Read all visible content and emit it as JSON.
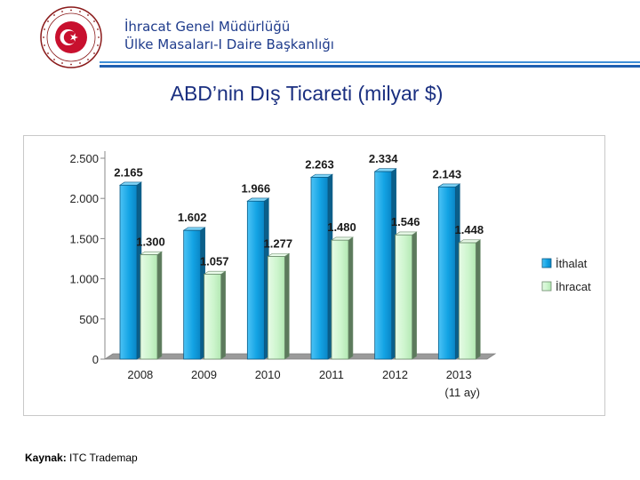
{
  "header": {
    "org_line1": "İhracat Genel Müdürlüğü",
    "org_line2": "Ülke Masaları-I Daire Başkanlığı",
    "seal_text_top": "TÜRKİYE CUMHURİYETİ",
    "seal_text_bottom": "EKONOMİ BAKANLIĞI"
  },
  "title": "ABD’nin Dış Ticareti (milyar $)",
  "source": {
    "label": "Kaynak:",
    "value": "ITC Trademap"
  },
  "colors": {
    "ithalat": "#1aa7e6",
    "ihracat": "#ccf5cc",
    "title": "#1a2f80",
    "org": "#1f3c8c"
  },
  "chart_data": {
    "type": "bar",
    "categories": [
      "2008",
      "2009",
      "2010",
      "2011",
      "2012",
      "2013"
    ],
    "category_sublabels": [
      "",
      "",
      "",
      "",
      "",
      "(11 ay)"
    ],
    "series": [
      {
        "name": "İthalat",
        "values": [
          2165,
          1602,
          1966,
          2263,
          2334,
          2143
        ],
        "labels": [
          "2.165",
          "1.602",
          "1.966",
          "2.263",
          "2.334",
          "2.143"
        ]
      },
      {
        "name": "İhracat",
        "values": [
          1300,
          1057,
          1277,
          1480,
          1546,
          1448
        ],
        "labels": [
          "1.300",
          "1.057",
          "1.277",
          "1.480",
          "1.546",
          "1.448"
        ]
      }
    ],
    "yticks": [
      0,
      500,
      1000,
      1500,
      2000,
      2500
    ],
    "ytick_labels": [
      "0",
      "500",
      "1.000",
      "1.500",
      "2.000",
      "2.500"
    ],
    "ylim": [
      0,
      2500
    ],
    "grid": false,
    "legend": "right",
    "style": "3d"
  }
}
